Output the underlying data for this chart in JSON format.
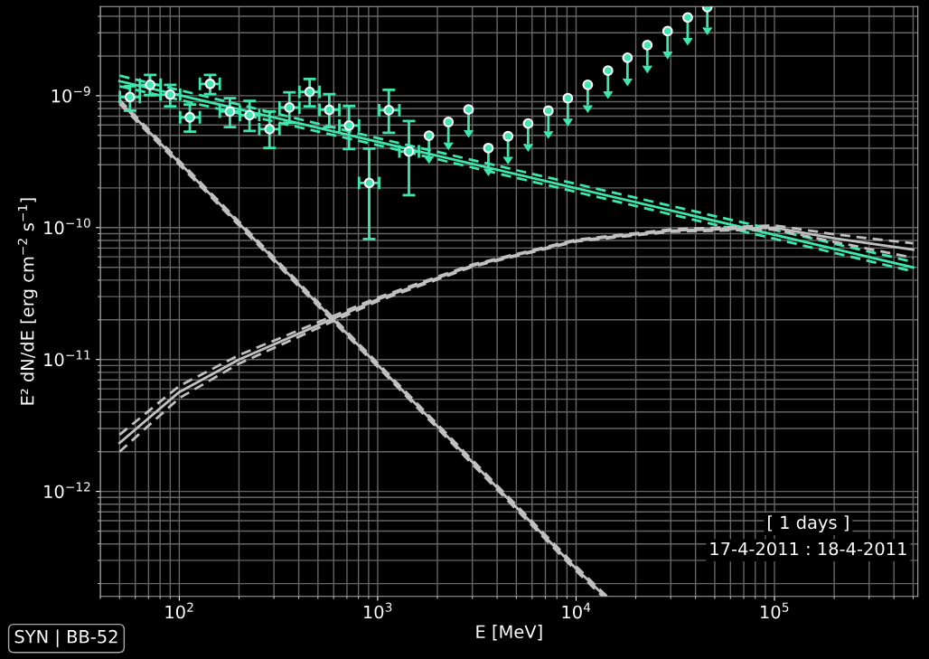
{
  "chart_data": {
    "type": "scatter",
    "xlabel": "E [MeV]",
    "ylabel": "E² dN/dE [erg cm$^{−2}$ s$^{−1}$]",
    "log": "xy",
    "grid": true,
    "xlim": [
      40,
      528000
    ],
    "ylim": [
      1.6e-13,
      4.74e-09
    ],
    "xticks": [
      {
        "value": 100,
        "label": "10$^{2}$"
      },
      {
        "value": 1000,
        "label": "10$^{3}$"
      },
      {
        "value": 10000,
        "label": "10$^{4}$"
      },
      {
        "value": 100000,
        "label": "10$^{5}$"
      }
    ],
    "yticks": [
      {
        "value": 1e-12,
        "label": "10$^{−12}$"
      },
      {
        "value": 1e-11,
        "label": "10$^{−11}$"
      },
      {
        "value": 1e-10,
        "label": "10$^{−10}$"
      },
      {
        "value": 1e-09,
        "label": "10$^{−9}$"
      }
    ],
    "series": [
      {
        "type": "line",
        "color": "#3de8b0",
        "line_style": "solid",
        "marker": "none",
        "x": [
          50,
          1000,
          500000
        ],
        "values": [
          1.29e-09,
          4.48e-10,
          5e-11
        ]
      },
      {
        "type": "line",
        "color": "#3de8b0",
        "line_style": "dashed",
        "marker": "none",
        "x": [
          50,
          1000,
          500000
        ],
        "values": [
          1.18e-09,
          4.22e-10,
          4.65e-11
        ]
      },
      {
        "type": "line",
        "color": "#3de8b0",
        "line_style": "dashed",
        "marker": "none",
        "x": [
          50,
          1000,
          500000
        ],
        "values": [
          1.42e-09,
          4.77e-10,
          5.5e-11
        ]
      },
      {
        "type": "line",
        "color": "#c0c0c0",
        "line_style": "solid",
        "marker": "none",
        "x": [
          50,
          1000,
          10000,
          14000
        ],
        "values": [
          9e-10,
          9.1e-12,
          2.6e-13,
          1.6e-13
        ]
      },
      {
        "type": "line",
        "color": "#c0c0c0",
        "line_style": "dashed",
        "marker": "none",
        "x": [
          50,
          1000,
          10000,
          13600
        ],
        "values": [
          8.7e-10,
          8.8e-12,
          2.5e-13,
          1.6e-13
        ]
      },
      {
        "type": "line",
        "color": "#c0c0c0",
        "line_style": "dashed",
        "marker": "none",
        "x": [
          50,
          1000,
          10000,
          14300
        ],
        "values": [
          9.3e-10,
          9.4e-12,
          2.7e-13,
          1.6e-13
        ]
      },
      {
        "type": "line",
        "color": "#c0c0c0",
        "line_style": "solid",
        "marker": "none",
        "x": [
          50,
          100,
          200,
          1000,
          3000,
          10000,
          30000,
          100000,
          200000,
          500000
        ],
        "values": [
          2.33e-12,
          5.67e-12,
          1e-11,
          2.86e-11,
          5.15e-11,
          7.98e-11,
          9.5e-11,
          1e-10,
          8.3e-11,
          6.8e-11
        ]
      },
      {
        "type": "line",
        "color": "#c0c0c0",
        "line_style": "dashed",
        "marker": "none",
        "x": [
          50,
          100,
          200,
          1000,
          3000,
          10000,
          30000,
          100000,
          200000,
          500000
        ],
        "values": [
          2e-12,
          5.1e-12,
          9.3e-12,
          2.77e-11,
          5.05e-11,
          7.85e-11,
          9.3e-11,
          9.7e-11,
          7.8e-11,
          5.9e-11
        ]
      },
      {
        "type": "line",
        "color": "#c0c0c0",
        "line_style": "dashed",
        "marker": "none",
        "x": [
          50,
          100,
          200,
          1000,
          3000,
          10000,
          30000,
          100000,
          200000,
          500000
        ],
        "values": [
          2.69e-12,
          6.3e-12,
          1.08e-11,
          2.95e-11,
          5.25e-11,
          8.1e-11,
          9.7e-11,
          1.04e-10,
          8.9e-11,
          7.6e-11
        ]
      },
      {
        "color": "#3de8b0",
        "marker": "circle",
        "x": [
          56.4,
          71.3,
          90.0,
          113,
          143,
          180,
          226,
          285,
          359,
          454,
          570,
          717,
          906,
          1138,
          1437
        ],
        "values": [
          9.77e-10,
          1.21e-09,
          1.02e-09,
          6.86e-10,
          1.23e-09,
          7.58e-10,
          7.12e-10,
          5.58e-10,
          8.14e-10,
          1.07e-09,
          7.82e-10,
          5.94e-10,
          2.18e-10,
          7.77e-10,
          3.78e-10
        ],
        "errors": [
          [
            7.7e-10,
            1.18e-09
          ],
          [
            1.01e-09,
            1.44e-09
          ],
          [
            8.32e-10,
            1.21e-09
          ],
          [
            5.35e-10,
            8.59e-10
          ],
          [
            1.03e-09,
            1.44e-09
          ],
          [
            5.78e-10,
            9.57e-10
          ],
          [
            5.41e-10,
            9.14e-10
          ],
          [
            4.02e-10,
            7.58e-10
          ],
          [
            6.25e-10,
            1.06e-09
          ],
          [
            8.32e-10,
            1.34e-09
          ],
          [
            5.78e-10,
            1.03e-09
          ],
          [
            3.94e-10,
            8.36e-10
          ],
          [
            8.19e-11,
            3.98e-10
          ],
          [
            5.24e-10,
            1.11e-09
          ],
          [
            1.76e-10,
            6.42e-10
          ]
        ],
        "xerrors": [
          [
            50.2,
            63.3
          ],
          [
            63.3,
            80.5
          ],
          [
            80.5,
            101
          ],
          [
            101,
            127
          ],
          [
            127,
            160
          ],
          [
            160,
            202
          ],
          [
            202,
            253
          ],
          [
            253,
            320
          ],
          [
            320,
            403
          ],
          [
            403,
            509
          ],
          [
            509,
            641
          ],
          [
            641,
            805
          ],
          [
            805,
            1017
          ],
          [
            1017,
            1286
          ],
          [
            1286,
            1613
          ]
        ]
      },
      {
        "color": "#3de8b0",
        "marker": "circle",
        "x": [
          1814,
          2272,
          2871,
          3614,
          4539,
          5731,
          7250,
          9090,
          11450,
          14480,
          18160,
          22860,
          28920,
          36520,
          45860
        ],
        "values": [
          4.98e-10,
          6.32e-10,
          7.86e-10,
          4.01e-10,
          4.93e-10,
          6.16e-10,
          7.7e-10,
          9.57e-10,
          1.21e-09,
          1.55e-09,
          1.94e-09,
          2.42e-09,
          3.09e-09,
          3.92e-09,
          4.7e-09
        ],
        "errors": [
          [
            3.48e-10,
            4.98e-10
          ],
          [
            4.42e-10,
            6.32e-10
          ],
          [
            5.49e-10,
            7.86e-10
          ],
          [
            2.8e-10,
            4.01e-10
          ],
          [
            3.44e-10,
            4.93e-10
          ],
          [
            4.3e-10,
            6.16e-10
          ],
          [
            5.38e-10,
            7.7e-10
          ],
          [
            6.69e-10,
            9.57e-10
          ],
          [
            8.45e-10,
            1.21e-09
          ],
          [
            1.08e-09,
            1.55e-09
          ],
          [
            1.35e-09,
            1.94e-09
          ],
          [
            1.69e-09,
            2.42e-09
          ],
          [
            2.16e-09,
            3.09e-09
          ],
          [
            2.74e-09,
            3.92e-09
          ],
          [
            3.29e-09,
            4.7e-09
          ]
        ]
      }
    ],
    "annotations": [
      "[ 1 days ]",
      "17-4-2011 : 18-4-2011",
      "SYN | BB-52"
    ]
  }
}
